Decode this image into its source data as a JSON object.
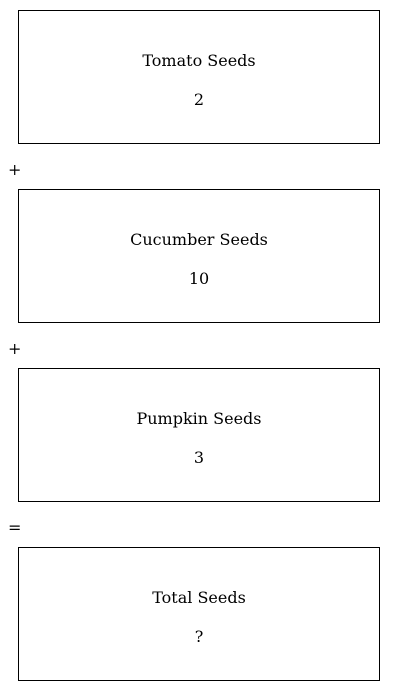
{
  "cards": [
    {
      "label": "Tomato Seeds",
      "value": "2"
    },
    {
      "label": "Cucumber Seeds",
      "value": "10"
    },
    {
      "label": "Pumpkin Seeds",
      "value": "3"
    },
    {
      "label": "Total Seeds",
      "value": "?"
    }
  ],
  "operators": [
    "+",
    "+",
    "="
  ]
}
